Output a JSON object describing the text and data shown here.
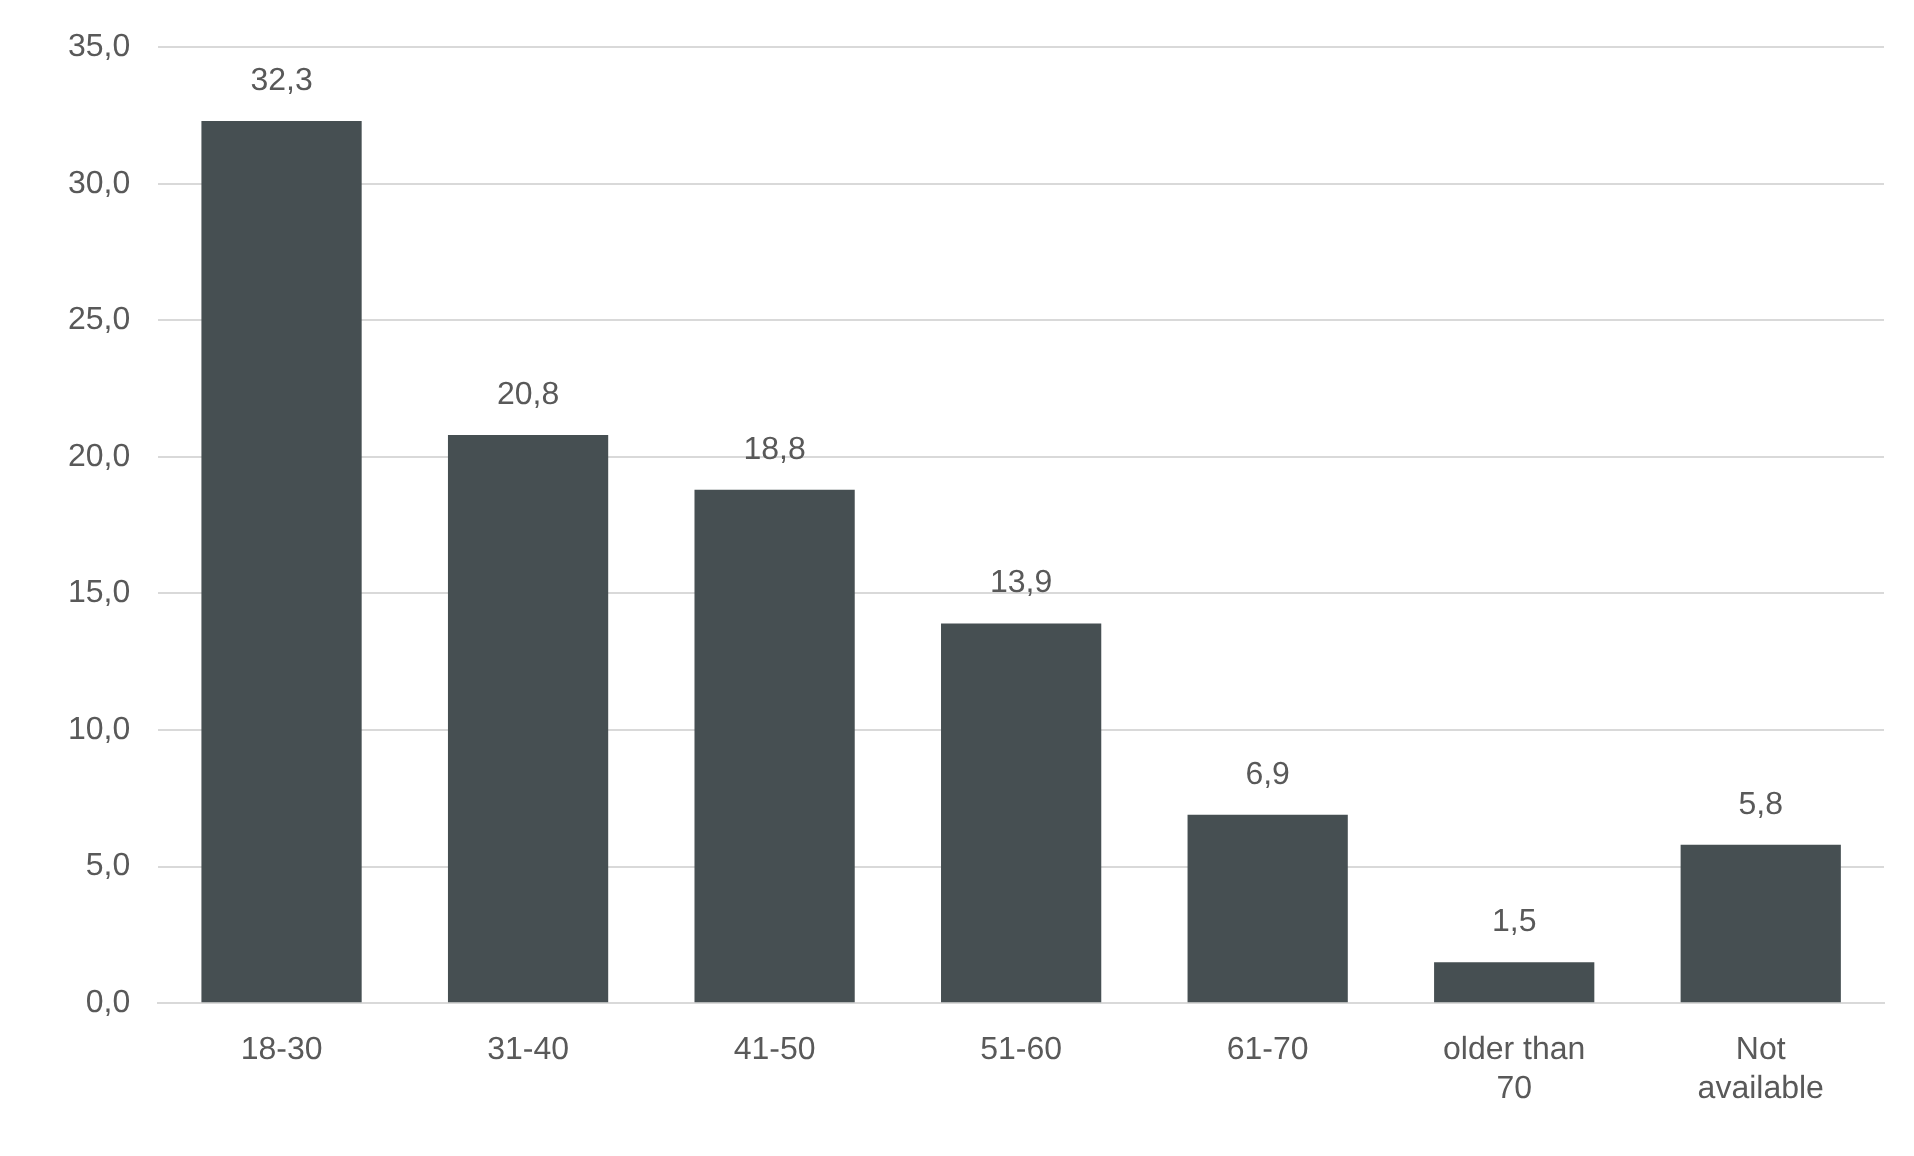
{
  "chart_data": {
    "type": "bar",
    "categories": [
      "18-30",
      "31-40",
      "41-50",
      "51-60",
      "61-70",
      "older than 70",
      "Not available"
    ],
    "values": [
      32.3,
      20.8,
      18.8,
      13.9,
      6.9,
      1.5,
      5.8
    ],
    "value_labels": [
      "32,3",
      "20,8",
      "18,8",
      "13,9",
      "6,9",
      "1,5",
      "5,8"
    ],
    "color": "#464f52",
    "ylim": [
      0,
      35
    ],
    "yticks": [
      {
        "value": 0,
        "label": "0,0"
      },
      {
        "value": 5,
        "label": "5,0"
      },
      {
        "value": 10,
        "label": "10,0"
      },
      {
        "value": 15,
        "label": "15,0"
      },
      {
        "value": 20,
        "label": "20,0"
      },
      {
        "value": 25,
        "label": "25,0"
      },
      {
        "value": 30,
        "label": "30,0"
      },
      {
        "value": 35,
        "label": "35,0"
      }
    ],
    "grid": "y",
    "legend": false
  }
}
